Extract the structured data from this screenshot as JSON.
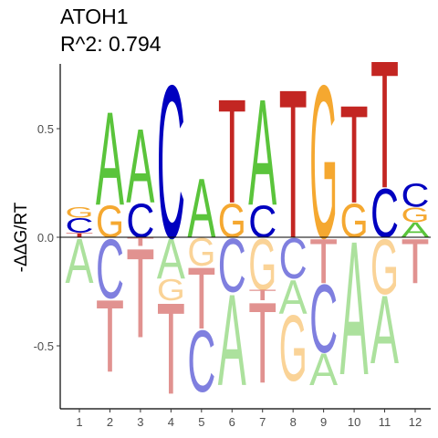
{
  "chart_data": {
    "type": "sequence-logo",
    "title": "ATOH1",
    "subtitle": "R^2: 0.794",
    "ylabel": "-ΔΔG/RT",
    "xlabel": "",
    "ylim": [
      -0.78,
      0.78
    ],
    "yticks": [
      {
        "value": 0.5,
        "label": "0.5"
      },
      {
        "value": 0.0,
        "label": "0.0"
      },
      {
        "value": -0.5,
        "label": "-0.5"
      }
    ],
    "positions": [
      "1",
      "2",
      "3",
      "4",
      "5",
      "6",
      "7",
      "8",
      "9",
      "10",
      "11",
      "12"
    ],
    "colors": {
      "A": "#5ac43b",
      "C": "#0000c0",
      "G": "#f5a830",
      "T": "#c32622"
    },
    "pos_alpha": 1.0,
    "neg_alpha": 0.5,
    "stacks": [
      {
        "pos": [
          [
            "T",
            0.02
          ],
          [
            "C",
            0.07
          ],
          [
            "G",
            0.05
          ]
        ],
        "neg": [
          [
            "A",
            -0.21
          ]
        ]
      },
      {
        "pos": [
          [
            "G",
            0.15
          ],
          [
            "A",
            0.44
          ]
        ],
        "neg": [
          [
            "C",
            -0.28
          ],
          [
            "T",
            -0.62
          ]
        ]
      },
      {
        "pos": [
          [
            "C",
            0.16
          ],
          [
            "A",
            0.35
          ]
        ],
        "neg": [
          [
            "T",
            -0.04
          ],
          [
            "T",
            -0.46
          ]
        ]
      },
      {
        "pos": [
          [
            "C",
            0.72
          ]
        ],
        "neg": [
          [
            "A",
            -0.19
          ],
          [
            "G",
            -0.29
          ],
          [
            "T",
            -0.72
          ]
        ]
      },
      {
        "pos": [
          [
            "A",
            0.28
          ]
        ],
        "neg": [
          [
            "G",
            -0.13
          ],
          [
            "T",
            -0.42
          ],
          [
            "C",
            -0.71
          ]
        ]
      },
      {
        "pos": [
          [
            "G",
            0.16
          ],
          [
            "T",
            0.49
          ]
        ],
        "neg": [
          [
            "C",
            -0.25
          ],
          [
            "A",
            -0.68
          ]
        ]
      },
      {
        "pos": [
          [
            "C",
            0.15
          ],
          [
            "A",
            0.5
          ]
        ],
        "neg": [
          [
            "G",
            -0.24
          ],
          [
            "T",
            -0.29
          ],
          [
            "T",
            -0.67
          ]
        ]
      },
      {
        "pos": [
          [
            "T",
            0.7
          ]
        ],
        "neg": [
          [
            "C",
            -0.19
          ],
          [
            "A",
            -0.35
          ],
          [
            "G",
            -0.66
          ]
        ]
      },
      {
        "pos": [
          [
            "G",
            0.72
          ]
        ],
        "neg": [
          [
            "T",
            -0.21
          ],
          [
            "C",
            -0.53
          ],
          [
            "A",
            -0.68
          ]
        ]
      },
      {
        "pos": [
          [
            "G",
            0.16
          ],
          [
            "T",
            0.46
          ]
        ],
        "neg": [
          [
            "A",
            -0.63
          ]
        ]
      },
      {
        "pos": [
          [
            "C",
            0.23
          ],
          [
            "T",
            0.6
          ]
        ],
        "neg": [
          [
            "G",
            -0.26
          ],
          [
            "A",
            -0.58
          ]
        ]
      },
      {
        "pos": [
          [
            "A",
            0.07
          ],
          [
            "G",
            0.07
          ],
          [
            "C",
            0.11
          ]
        ],
        "neg": [
          [
            "T",
            -0.21
          ]
        ]
      }
    ]
  }
}
